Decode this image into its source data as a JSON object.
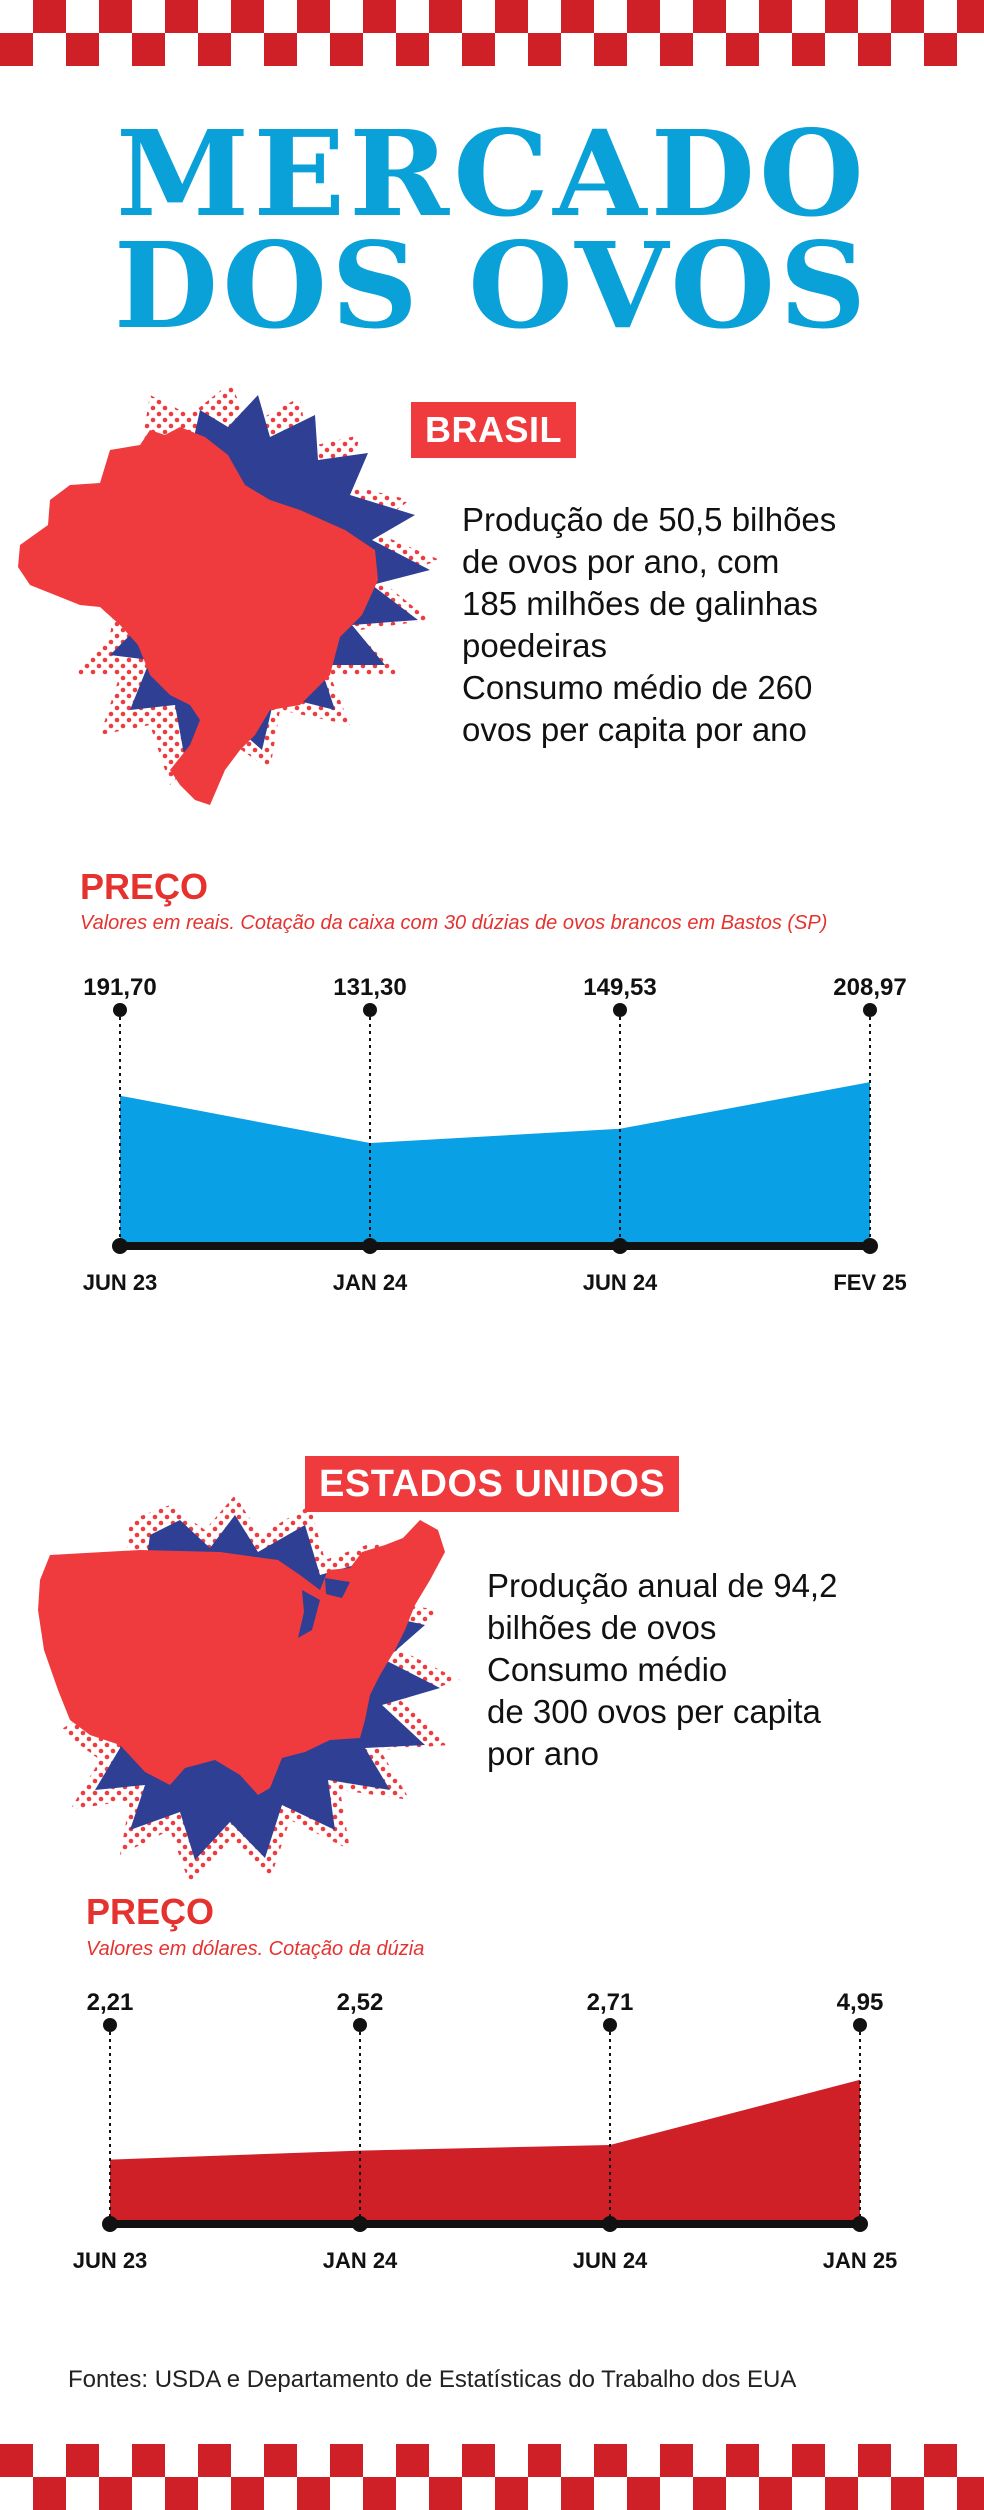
{
  "title": {
    "line1": "MERCADO",
    "line2": "DOS OVOS"
  },
  "colors": {
    "red": "#ef3b3d",
    "dark_red": "#d02027",
    "blue": "#0aa0e6",
    "navy": "#2e3f94",
    "title_blue": "#0aa0d8"
  },
  "brasil": {
    "badge": "BRASIL",
    "desc_lines": [
      "Produção de 50,5 bilhões",
      "de ovos por ano, com",
      "185 milhões de galinhas",
      "poedeiras",
      "Consumo médio de 260",
      "ovos per capita por ano"
    ]
  },
  "eua": {
    "badge": "ESTADOS UNIDOS",
    "desc_lines": [
      "Produção anual de 94,2",
      "bilhões de ovos",
      "Consumo médio",
      "de 300 ovos per capita",
      "por ano"
    ]
  },
  "chart_data": [
    {
      "type": "area",
      "title": "PREÇO",
      "subtitle": "Valores em reais. Cotação da caixa com 30 dúzias de ovos brancos em Bastos (SP)",
      "categories": [
        "JUN 23",
        "JAN 24",
        "JUN 24",
        "FEV 25"
      ],
      "values": [
        191.7,
        131.3,
        149.53,
        208.97
      ],
      "value_labels": [
        "191,70",
        "131,30",
        "149,53",
        "208,97"
      ],
      "color": "#0aa0e6",
      "ylim": [
        0,
        250
      ]
    },
    {
      "type": "area",
      "title": "PREÇO",
      "subtitle": "Valores em dólares. Cotação da dúzia",
      "categories": [
        "JUN 23",
        "JAN 24",
        "JUN 24",
        "JAN 25"
      ],
      "values": [
        2.21,
        2.52,
        2.71,
        4.95
      ],
      "value_labels": [
        "2,21",
        "2,52",
        "2,71",
        "4,95"
      ],
      "color": "#d02027",
      "ylim": [
        0,
        5.8
      ]
    }
  ],
  "sources": "Fontes: USDA e Departamento de Estatísticas do Trabalho dos EUA"
}
